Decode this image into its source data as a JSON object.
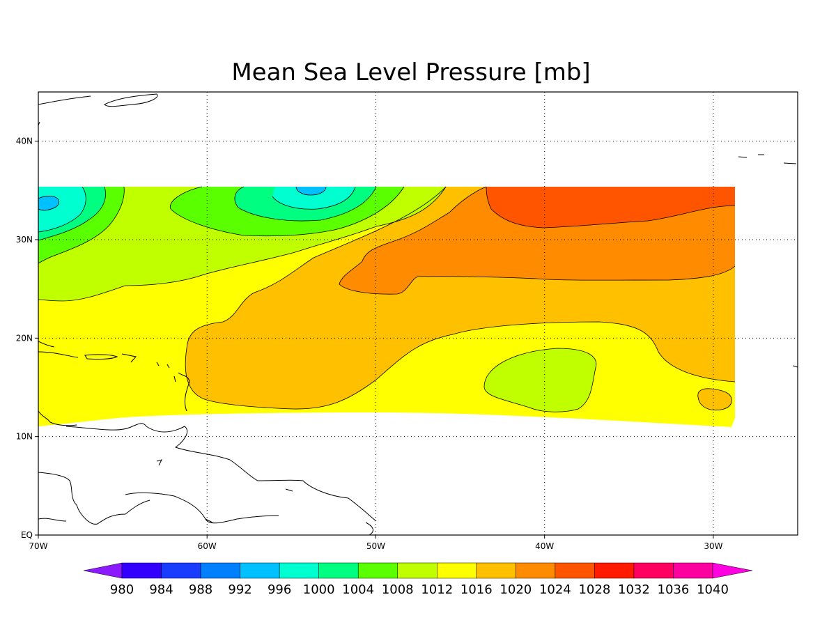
{
  "chart_data": {
    "type": "heatmap",
    "title": "Mean Sea Level Pressure [mb]",
    "xlabel": "",
    "ylabel": "",
    "x_range": [
      -70,
      -25
    ],
    "y_range": [
      0,
      45
    ],
    "x_ticks": [
      {
        "value": -70,
        "label": "70W"
      },
      {
        "value": -60,
        "label": "60W"
      },
      {
        "value": -50,
        "label": "50W"
      },
      {
        "value": -40,
        "label": "40W"
      },
      {
        "value": -30,
        "label": "30W"
      }
    ],
    "y_ticks": [
      {
        "value": 0,
        "label": "EQ"
      },
      {
        "value": 10,
        "label": "10N"
      },
      {
        "value": 20,
        "label": "20N"
      },
      {
        "value": 30,
        "label": "30N"
      },
      {
        "value": 40,
        "label": "40N"
      }
    ],
    "grid": true,
    "data_region": {
      "lon": [
        -70,
        -28.7
      ],
      "lat": [
        11,
        35.5
      ]
    },
    "colorbar": {
      "placement": "bottom",
      "levels": [
        980,
        984,
        988,
        992,
        996,
        1000,
        1004,
        1008,
        1012,
        1016,
        1020,
        1024,
        1028,
        1032,
        1036,
        1040
      ],
      "colors": [
        "#8c1aff",
        "#3300ff",
        "#1a3cff",
        "#0080ff",
        "#00c0ff",
        "#00ffd0",
        "#00ff80",
        "#5aff00",
        "#c0ff00",
        "#ffff00",
        "#ffc000",
        "#ff8c00",
        "#ff5500",
        "#ff1a00",
        "#ff0060",
        "#ff00a0",
        "#ff00e0"
      ]
    },
    "pressure_features": [
      {
        "kind": "low",
        "lon": -69,
        "lat": 34,
        "value_band": [
          996,
          1000
        ]
      },
      {
        "kind": "low",
        "lon": -54,
        "lat": 35,
        "value_band": [
          996,
          1000
        ]
      },
      {
        "kind": "high",
        "lon": -38,
        "lat": 33,
        "value_band": [
          1024,
          1028
        ]
      },
      {
        "kind": "relative-low",
        "lon": -39.5,
        "lat": 16,
        "value_band": [
          1012,
          1016
        ]
      },
      {
        "kind": "relative-high",
        "lon": -30,
        "lat": 14,
        "value_band": [
          1020,
          1024
        ]
      }
    ]
  }
}
